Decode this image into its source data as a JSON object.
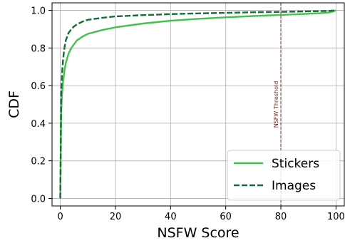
{
  "chart_data": {
    "type": "line",
    "title": "",
    "xlabel": "NSFW Score",
    "ylabel": "CDF",
    "xlim": [
      -3,
      103
    ],
    "ylim": [
      -0.04,
      1.04
    ],
    "xticks": [
      0,
      20,
      40,
      60,
      80,
      100
    ],
    "yticks": [
      0.0,
      0.2,
      0.4,
      0.6,
      0.8,
      1.0
    ],
    "xtick_labels": [
      "0",
      "20",
      "40",
      "60",
      "80",
      "100"
    ],
    "ytick_labels": [
      "0.0",
      "0.2",
      "0.4",
      "0.6",
      "0.8",
      "1.0"
    ],
    "grid": true,
    "legend_position": "bottom-right",
    "series": [
      {
        "name": "Stickers",
        "color": "#44c04c",
        "style": "solid",
        "x": [
          0,
          0.3,
          0.6,
          1,
          1.5,
          2,
          3,
          4,
          5,
          6,
          8,
          10,
          15,
          20,
          30,
          40,
          50,
          60,
          70,
          80,
          90,
          95,
          98,
          99,
          100
        ],
        "y": [
          0.0,
          0.45,
          0.55,
          0.62,
          0.68,
          0.72,
          0.77,
          0.8,
          0.82,
          0.84,
          0.86,
          0.875,
          0.895,
          0.91,
          0.93,
          0.945,
          0.955,
          0.963,
          0.97,
          0.976,
          0.982,
          0.986,
          0.99,
          0.995,
          1.0
        ]
      },
      {
        "name": "Images",
        "color": "#176b36",
        "style": "dashed",
        "x": [
          0,
          0.3,
          0.6,
          1,
          1.5,
          2,
          3,
          4,
          5,
          6,
          8,
          10,
          15,
          20,
          30,
          40,
          50,
          60,
          70,
          80,
          90,
          95,
          98,
          99,
          100
        ],
        "y": [
          0.0,
          0.55,
          0.66,
          0.74,
          0.8,
          0.84,
          0.88,
          0.9,
          0.915,
          0.925,
          0.94,
          0.95,
          0.96,
          0.968,
          0.975,
          0.98,
          0.984,
          0.987,
          0.99,
          0.992,
          0.995,
          0.996,
          0.998,
          0.999,
          1.0
        ]
      }
    ],
    "annotations": [
      {
        "type": "vline",
        "x": 80,
        "label": "NSFW Threshold",
        "color": "#6b2e24",
        "style": "dashed"
      }
    ]
  }
}
